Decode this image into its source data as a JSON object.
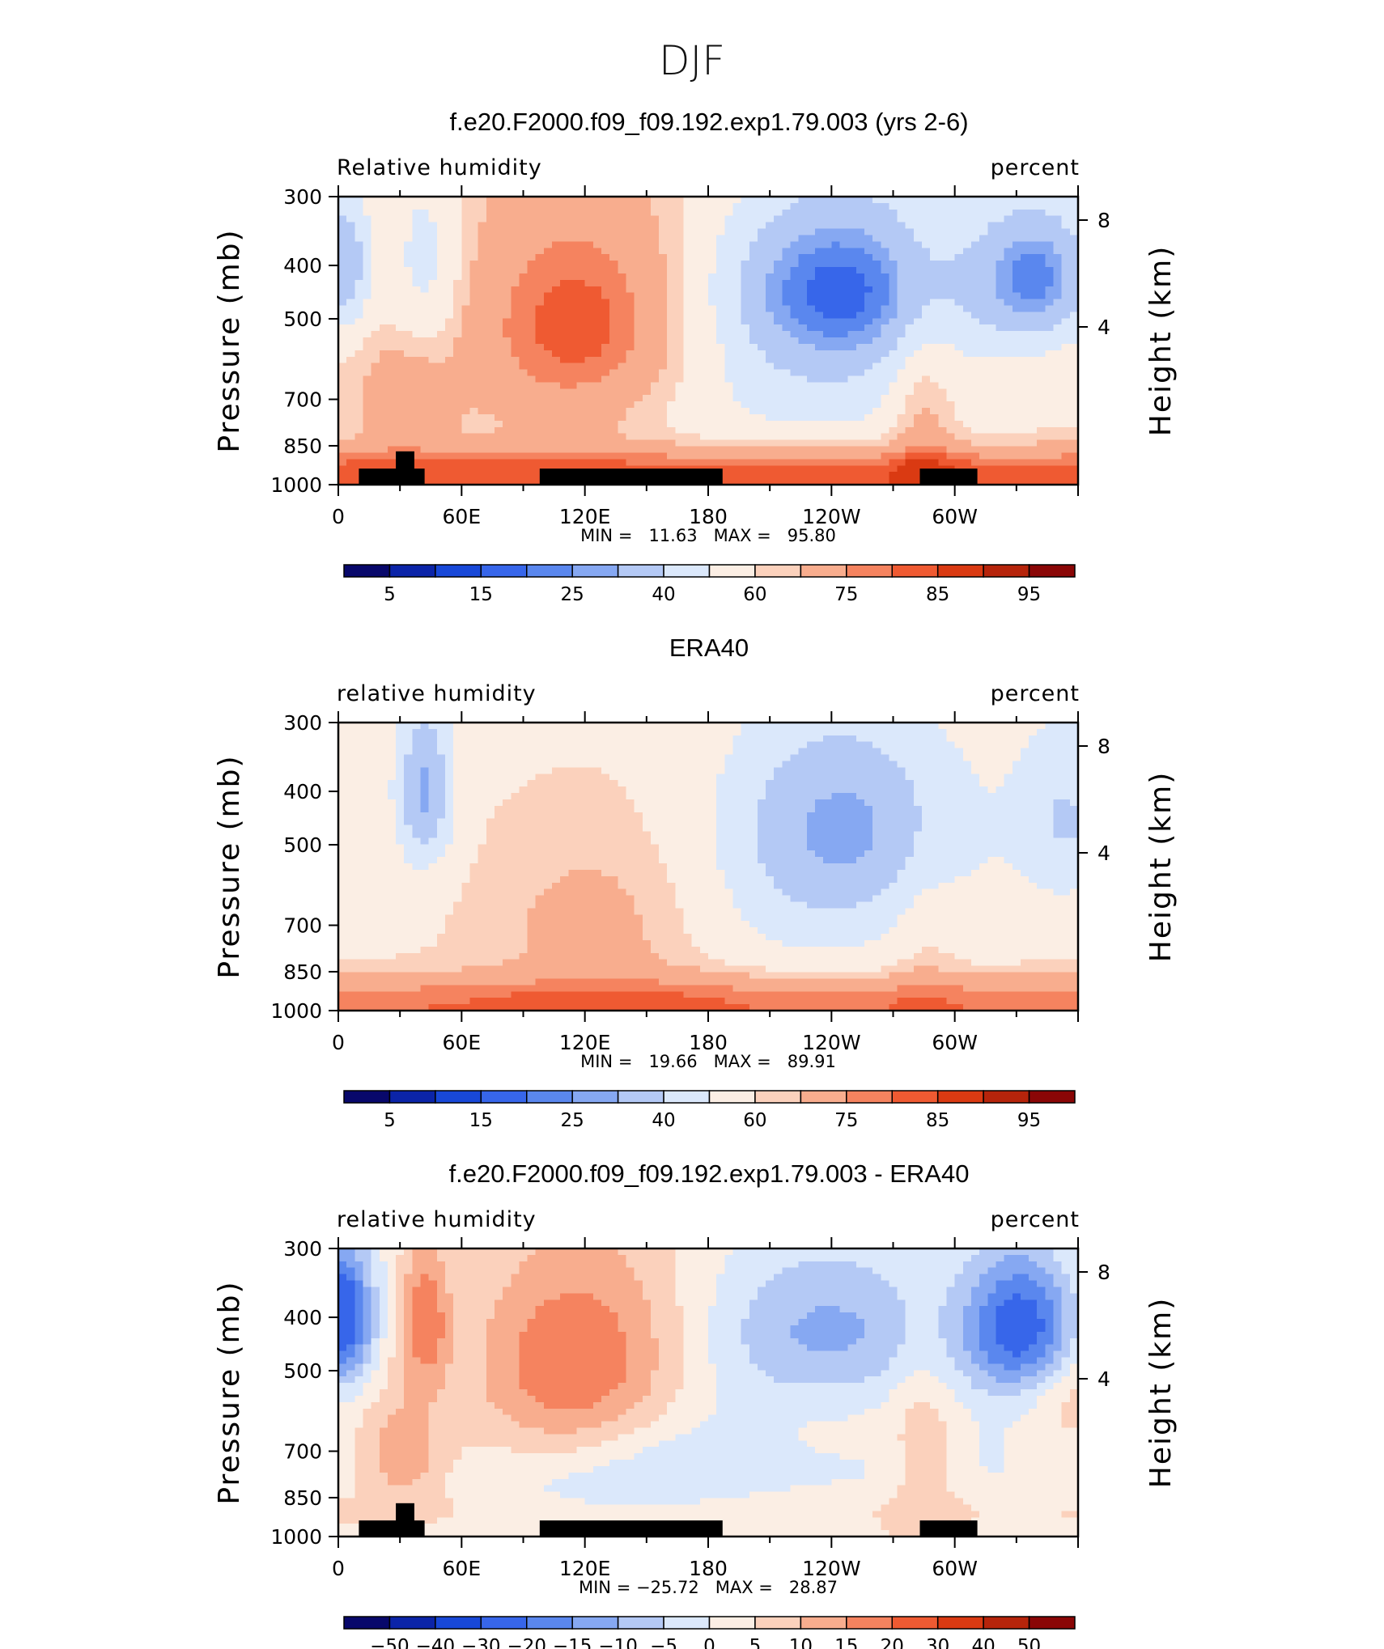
{
  "figure": {
    "title": "DJF"
  },
  "chart_data": [
    {
      "type": "heatmap",
      "title": "f.e20.F2000.f09_f09.192.exp1.79.003 (yrs 2-6)",
      "left_label": "Relative humidity",
      "right_label": "percent",
      "ylabel": "Pressure (mb)",
      "ylabel_right": "Height (km)",
      "x_ticks": [
        "0",
        "60E",
        "120E",
        "180",
        "120W",
        "60W"
      ],
      "y_ticks": [
        "300",
        "400",
        "500",
        "700",
        "850",
        "1000"
      ],
      "y_ticks_right": [
        "8",
        "4"
      ],
      "stats": "MIN =   11.63   MAX =   95.80",
      "min": 11.63,
      "max": 95.8,
      "colorbar_labels": [
        "5",
        "15",
        "25",
        "40",
        "60",
        "75",
        "85",
        "95"
      ],
      "xlim": [
        0,
        360
      ],
      "ylim": [
        1000,
        300
      ]
    },
    {
      "type": "heatmap",
      "title": "ERA40",
      "left_label": "relative humidity",
      "right_label": "percent",
      "ylabel": "Pressure (mb)",
      "ylabel_right": "Height (km)",
      "x_ticks": [
        "0",
        "60E",
        "120E",
        "180",
        "120W",
        "60W"
      ],
      "y_ticks": [
        "300",
        "400",
        "500",
        "700",
        "850",
        "1000"
      ],
      "y_ticks_right": [
        "8",
        "4"
      ],
      "stats": "MIN =   19.66   MAX =   89.91",
      "min": 19.66,
      "max": 89.91,
      "colorbar_labels": [
        "5",
        "15",
        "25",
        "40",
        "60",
        "75",
        "85",
        "95"
      ],
      "xlim": [
        0,
        360
      ],
      "ylim": [
        1000,
        300
      ]
    },
    {
      "type": "heatmap",
      "title": "f.e20.F2000.f09_f09.192.exp1.79.003 - ERA40",
      "left_label": "relative humidity",
      "right_label": "percent",
      "ylabel": "Pressure (mb)",
      "ylabel_right": "Height (km)",
      "x_ticks": [
        "0",
        "60E",
        "120E",
        "180",
        "120W",
        "60W"
      ],
      "y_ticks": [
        "300",
        "400",
        "500",
        "700",
        "850",
        "1000"
      ],
      "y_ticks_right": [
        "8",
        "4"
      ],
      "stats": "MIN = −25.72   MAX =   28.87",
      "min": -25.72,
      "max": 28.87,
      "colorbar_labels": [
        "−50",
        "−40",
        "−30",
        "−20",
        "−15",
        "−10",
        "−5",
        "0",
        "5",
        "10",
        "15",
        "20",
        "30",
        "40",
        "50"
      ],
      "xlim": [
        0,
        360
      ],
      "ylim": [
        1000,
        300
      ]
    }
  ],
  "colors": {
    "palette": [
      "#08086b",
      "#0b24a8",
      "#1848d8",
      "#3766ea",
      "#5a87ee",
      "#86a8f2",
      "#b4c9f5",
      "#dbe8fb",
      "#fbeee4",
      "#fbd1bc",
      "#f8ad8e",
      "#f5835f",
      "#ef5a32",
      "#da3a12",
      "#b6240b",
      "#8a0606"
    ],
    "topography": "#000000"
  }
}
